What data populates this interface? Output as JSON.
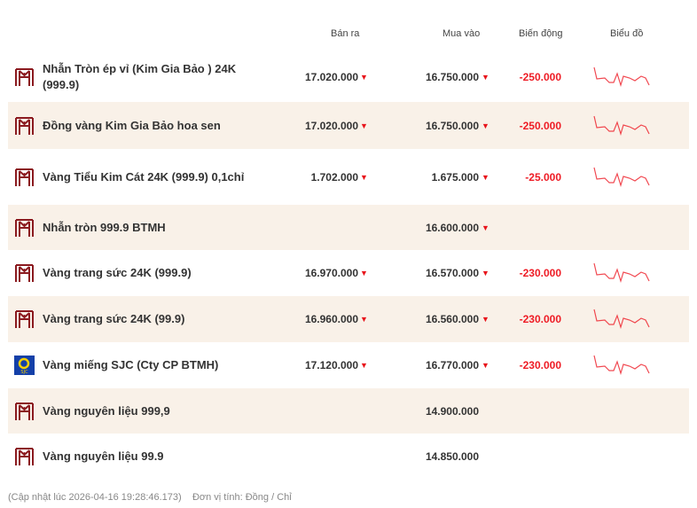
{
  "headers": {
    "sell": "Bán ra",
    "buy": "Mua vào",
    "change": "Biến động",
    "chart": "Biểu đồ"
  },
  "colors": {
    "down": "#ee1c25",
    "alt_row": "#f9f1e8",
    "logo": "#8b1a1f"
  },
  "rows": [
    {
      "name": "Nhẫn Tròn ép vỉ (Kim Gia Bảo ) 24K (999.9)",
      "logo": "btmh-logo",
      "sell": "17.020.000",
      "sell_trend": "down",
      "buy": "16.750.000",
      "buy_trend": "down",
      "change": "-250.000",
      "chart": true
    },
    {
      "name": "Đồng vàng Kim Gia Bảo hoa sen",
      "logo": "btmh-logo",
      "sell": "17.020.000",
      "sell_trend": "down",
      "buy": "16.750.000",
      "buy_trend": "down",
      "change": "-250.000",
      "chart": true
    },
    {
      "name": "Vàng Tiểu Kim Cát 24K (999.9) 0,1chỉ",
      "logo": "btmh-logo",
      "sell": "1.702.000",
      "sell_trend": "down",
      "buy": "1.675.000",
      "buy_trend": "down",
      "change": "-25.000",
      "chart": true
    },
    {
      "name": "Nhẫn tròn 999.9 BTMH",
      "logo": "btmh-logo",
      "sell": "",
      "sell_trend": "",
      "buy": "16.600.000",
      "buy_trend": "down",
      "change": "",
      "chart": false
    },
    {
      "name": "Vàng trang sức 24K (999.9)",
      "logo": "btmh-logo",
      "sell": "16.970.000",
      "sell_trend": "down",
      "buy": "16.570.000",
      "buy_trend": "down",
      "change": "-230.000",
      "chart": true
    },
    {
      "name": "Vàng trang sức 24K (99.9)",
      "logo": "btmh-logo",
      "sell": "16.960.000",
      "sell_trend": "down",
      "buy": "16.560.000",
      "buy_trend": "down",
      "change": "-230.000",
      "chart": true
    },
    {
      "name": "Vàng miếng SJC (Cty CP BTMH)",
      "logo": "sjc-logo",
      "sell": "17.120.000",
      "sell_trend": "down",
      "buy": "16.770.000",
      "buy_trend": "down",
      "change": "-230.000",
      "chart": true
    },
    {
      "name": "Vàng nguyên liệu 999,9",
      "logo": "btmh-logo",
      "sell": "",
      "sell_trend": "",
      "buy": "14.900.000",
      "buy_trend": "",
      "change": "",
      "chart": false
    },
    {
      "name": "Vàng nguyên liệu 99.9",
      "logo": "btmh-logo",
      "sell": "",
      "sell_trend": "",
      "buy": "14.850.000",
      "buy_trend": "",
      "change": "",
      "chart": false
    }
  ],
  "footer": {
    "updated": "(Cập nhật lúc 2026-04-16 19:28:46.173)",
    "unit": "Đơn vị tính: Đồng / Chỉ"
  }
}
